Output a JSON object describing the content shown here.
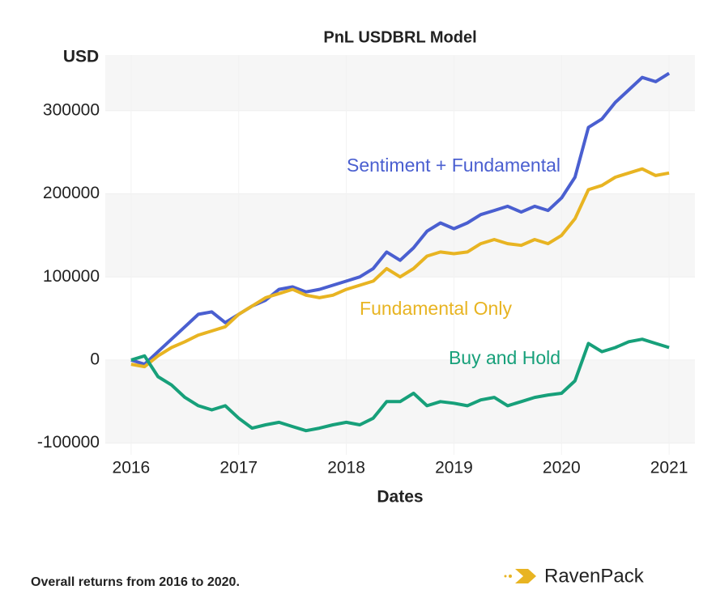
{
  "chart_data": {
    "type": "line",
    "title": "PnL USDBRL Model",
    "y_label": "USD",
    "x_label": "Dates",
    "x": [
      2016.0,
      2016.125,
      2016.25,
      2016.375,
      2016.5,
      2016.625,
      2016.75,
      2016.875,
      2017.0,
      2017.125,
      2017.25,
      2017.375,
      2017.5,
      2017.625,
      2017.75,
      2017.875,
      2018.0,
      2018.125,
      2018.25,
      2018.375,
      2018.5,
      2018.625,
      2018.75,
      2018.875,
      2019.0,
      2019.125,
      2019.25,
      2019.375,
      2019.5,
      2019.625,
      2019.75,
      2019.875,
      2020.0,
      2020.125,
      2020.25,
      2020.375,
      2020.5,
      2020.625,
      2020.75,
      2020.875,
      2021.0
    ],
    "series": [
      {
        "name": "Sentiment + Fundamental",
        "color": "#4a5fd0",
        "values": [
          0,
          -5000,
          10000,
          25000,
          40000,
          55000,
          58000,
          45000,
          55000,
          65000,
          72000,
          85000,
          88000,
          82000,
          85000,
          90000,
          95000,
          100000,
          110000,
          130000,
          120000,
          135000,
          155000,
          165000,
          158000,
          165000,
          175000,
          180000,
          185000,
          178000,
          185000,
          180000,
          195000,
          220000,
          280000,
          290000,
          310000,
          325000,
          340000,
          335000,
          345000
        ]
      },
      {
        "name": "Fundamental Only",
        "color": "#e8b422",
        "values": [
          -5000,
          -8000,
          5000,
          15000,
          22000,
          30000,
          35000,
          40000,
          55000,
          65000,
          75000,
          80000,
          85000,
          78000,
          75000,
          78000,
          85000,
          90000,
          95000,
          110000,
          100000,
          110000,
          125000,
          130000,
          128000,
          130000,
          140000,
          145000,
          140000,
          138000,
          145000,
          140000,
          150000,
          170000,
          205000,
          210000,
          220000,
          225000,
          230000,
          222000,
          225000
        ]
      },
      {
        "name": "Buy and Hold",
        "color": "#17a07a",
        "values": [
          0,
          5000,
          -20000,
          -30000,
          -45000,
          -55000,
          -60000,
          -55000,
          -70000,
          -82000,
          -78000,
          -75000,
          -80000,
          -85000,
          -82000,
          -78000,
          -75000,
          -78000,
          -70000,
          -50000,
          -50000,
          -40000,
          -55000,
          -50000,
          -52000,
          -55000,
          -48000,
          -45000,
          -55000,
          -50000,
          -45000,
          -42000,
          -40000,
          -25000,
          20000,
          10000,
          15000,
          22000,
          25000,
          20000,
          15000
        ]
      }
    ],
    "xlim": [
      2015.76,
      2021.24
    ],
    "xticks": [
      2016,
      2017,
      2018,
      2019,
      2020,
      2021
    ],
    "ylim": [
      -114000,
      367000
    ],
    "yticks": [
      -100000,
      0,
      100000,
      200000,
      300000
    ],
    "grid": true
  },
  "footer": "Overall returns from 2016 to 2020.",
  "logo": "RavenPack"
}
